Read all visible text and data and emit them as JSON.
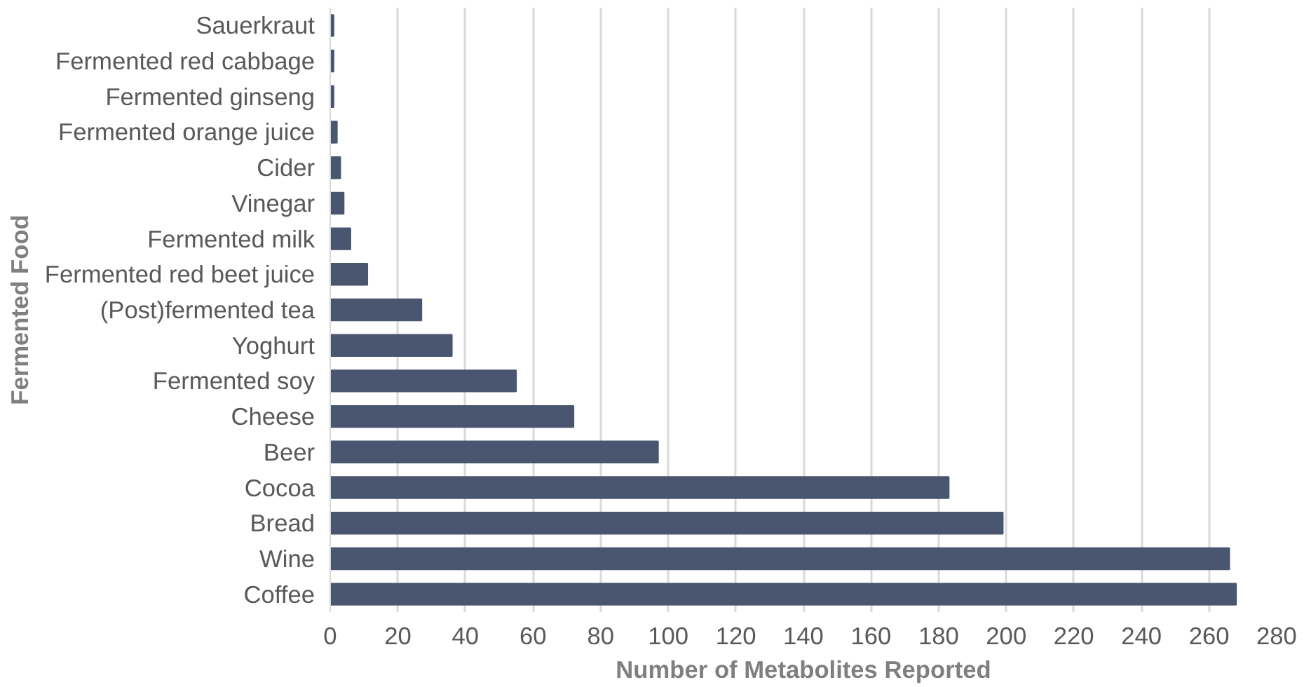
{
  "chart_data": {
    "type": "bar",
    "orientation": "horizontal",
    "xlabel": "Number of Metabolites Reported",
    "ylabel": "Fermented Food",
    "categories": [
      "Sauerkraut",
      "Fermented red cabbage",
      "Fermented ginseng",
      "Fermented orange juice",
      "Cider",
      "Vinegar",
      "Fermented milk",
      "Fermented red beet juice",
      "(Post)fermented tea",
      "Yoghurt",
      "Fermented soy",
      "Cheese",
      "Beer",
      "Cocoa",
      "Bread",
      "Wine",
      "Coffee"
    ],
    "values": [
      1,
      1,
      1,
      2,
      3,
      4,
      6,
      11,
      27,
      36,
      55,
      72,
      97,
      183,
      199,
      266,
      268
    ],
    "color": "#4a5670",
    "xlim": [
      0,
      280
    ],
    "xticks": [
      0,
      20,
      40,
      60,
      80,
      100,
      120,
      140,
      160,
      180,
      200,
      220,
      240,
      260,
      280
    ],
    "grid": "x"
  }
}
